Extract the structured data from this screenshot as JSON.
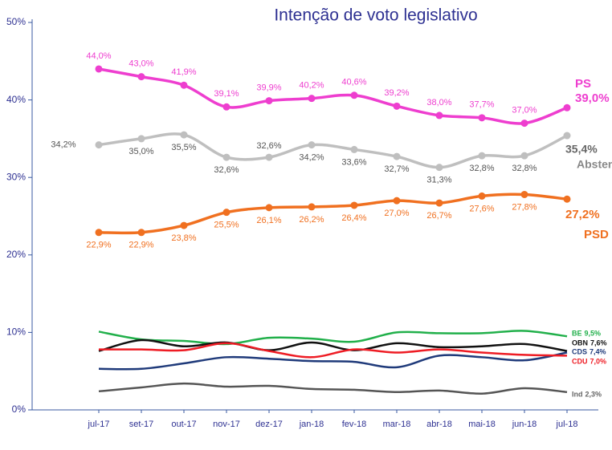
{
  "chart_data": {
    "type": "line",
    "title": "Intenção de voto legislativo",
    "categories": [
      "jul-17",
      "set-17",
      "out-17",
      "nov-17",
      "dez-17",
      "jan-18",
      "fev-18",
      "mar-18",
      "abr-18",
      "mai-18",
      "jun-18",
      "jul-18"
    ],
    "ylim": [
      0,
      50
    ],
    "yticks": [
      {
        "value": 0,
        "label": "0%"
      },
      {
        "value": 10,
        "label": "10%"
      },
      {
        "value": 20,
        "label": "20%"
      },
      {
        "value": 30,
        "label": "30%"
      },
      {
        "value": 40,
        "label": "40%"
      },
      {
        "value": 50,
        "label": "50%"
      }
    ],
    "series": [
      {
        "name": "PS",
        "color": "#ee3ecf",
        "values": [
          44.0,
          43.0,
          41.9,
          39.1,
          39.9,
          40.2,
          40.6,
          39.2,
          38.0,
          37.7,
          37.0,
          39.0
        ],
        "value_labels": [
          "44,0%",
          "43,0%",
          "41,9%",
          "39,1%",
          "39,9%",
          "40,2%",
          "40,6%",
          "39,2%",
          "38,0%",
          "37,7%",
          "37,0%",
          "39,0%"
        ]
      },
      {
        "name": "Abstenção",
        "color": "#bfbfbf",
        "values": [
          34.2,
          35.0,
          35.5,
          32.6,
          32.6,
          34.2,
          33.6,
          32.7,
          31.3,
          32.8,
          32.8,
          35.4
        ],
        "value_labels": [
          "34,2%",
          "35,0%",
          "35,5%",
          "32,6%",
          "32,6%",
          "34,2%",
          "33,6%",
          "32,7%",
          "31,3%",
          "32,8%",
          "32,8%",
          "35,4%"
        ]
      },
      {
        "name": "PSD",
        "color": "#f07020",
        "values": [
          22.9,
          22.9,
          23.8,
          25.5,
          26.1,
          26.2,
          26.4,
          27.0,
          26.7,
          27.6,
          27.8,
          27.2
        ],
        "value_labels": [
          "22,9%",
          "22,9%",
          "23,8%",
          "25,5%",
          "26,1%",
          "26,2%",
          "26,4%",
          "27,0%",
          "26,7%",
          "27,6%",
          "27,8%",
          "27,2%"
        ]
      },
      {
        "name": "BE",
        "color": "#22b04b",
        "values": [
          10.1,
          9.1,
          8.9,
          8.5,
          9.3,
          9.2,
          8.8,
          10.0,
          9.9,
          9.9,
          10.2,
          9.5
        ],
        "value_labels": [
          null,
          null,
          null,
          null,
          null,
          null,
          null,
          null,
          null,
          null,
          null,
          "9,5%"
        ]
      },
      {
        "name": "OBN",
        "color": "#111111",
        "values": [
          7.6,
          9.0,
          8.2,
          8.7,
          7.7,
          8.7,
          7.7,
          8.6,
          8.1,
          8.2,
          8.5,
          7.6
        ],
        "value_labels": [
          null,
          null,
          null,
          null,
          null,
          null,
          null,
          null,
          null,
          null,
          null,
          "7,6%"
        ]
      },
      {
        "name": "CDS",
        "color": "#1f3a7a",
        "values": [
          5.3,
          5.3,
          6.0,
          6.8,
          6.6,
          6.3,
          6.2,
          5.5,
          7.0,
          6.8,
          6.4,
          7.4
        ],
        "value_labels": [
          null,
          null,
          null,
          null,
          null,
          null,
          null,
          null,
          null,
          null,
          null,
          "7,4%"
        ]
      },
      {
        "name": "CDU",
        "color": "#ee1c24",
        "values": [
          7.8,
          7.8,
          7.7,
          8.6,
          7.6,
          6.8,
          7.8,
          7.4,
          7.8,
          7.4,
          7.1,
          7.0
        ],
        "value_labels": [
          null,
          null,
          null,
          null,
          null,
          null,
          null,
          null,
          null,
          null,
          null,
          "7,0%"
        ]
      },
      {
        "name": "Ind",
        "color": "#555555",
        "values": [
          2.4,
          2.9,
          3.4,
          3.0,
          3.1,
          2.7,
          2.6,
          2.3,
          2.5,
          2.1,
          2.8,
          2.3
        ],
        "value_labels": [
          null,
          null,
          null,
          null,
          null,
          null,
          null,
          null,
          null,
          null,
          null,
          "2,3%"
        ]
      }
    ]
  }
}
